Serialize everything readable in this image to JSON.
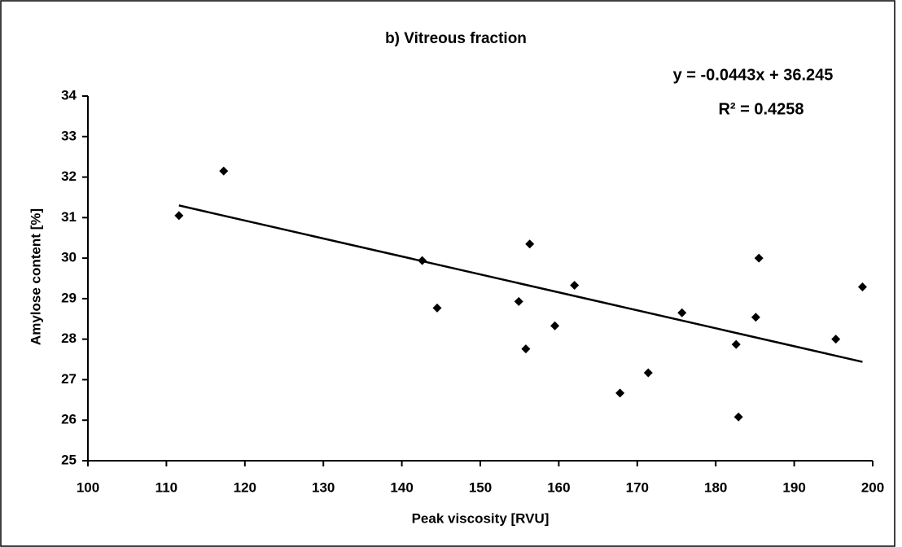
{
  "chart_data": {
    "type": "scatter",
    "title": "b) Vitreous fraction",
    "annotations": [
      "y = -0.0443x + 36.245",
      "R² = 0.4258"
    ],
    "x_label": "Peak viscosity [RVU]",
    "y_label": "Amylose content [%]",
    "color": "#000000",
    "x": [
      111.6,
      117.3,
      142.6,
      144.5,
      154.9,
      155.8,
      156.3,
      159.5,
      162.0,
      167.8,
      171.4,
      175.7,
      182.6,
      182.9,
      185.1,
      185.5,
      195.3,
      198.7
    ],
    "values": [
      31.05,
      32.15,
      29.94,
      28.77,
      28.93,
      27.76,
      30.35,
      28.33,
      29.33,
      26.67,
      27.17,
      28.65,
      27.87,
      26.08,
      28.54,
      30.0,
      28.0,
      29.29
    ],
    "trendline": {
      "x": [
        111.6,
        198.7
      ],
      "values": [
        31.3,
        27.44
      ]
    },
    "xlim": [
      100,
      200
    ],
    "xticks": [
      100,
      110,
      120,
      130,
      140,
      150,
      160,
      170,
      180,
      190,
      200
    ],
    "ylim": [
      25,
      34
    ],
    "yticks": [
      25,
      26,
      27,
      28,
      29,
      30,
      31,
      32,
      33,
      34
    ],
    "grid": false
  }
}
